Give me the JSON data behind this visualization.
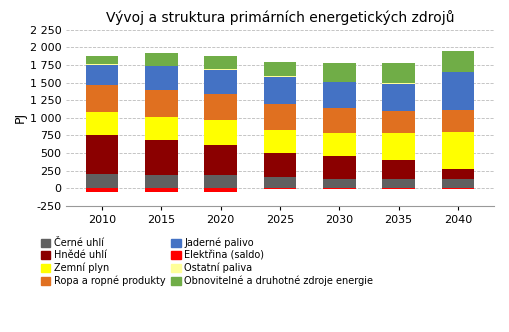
{
  "title": "Vývoj a struktura primárních energetických zdrojů",
  "ylabel": "PJ",
  "years": [
    2010,
    2015,
    2020,
    2025,
    2030,
    2035,
    2040
  ],
  "series": {
    "Černé uhlí": {
      "values": [
        200,
        190,
        185,
        155,
        130,
        130,
        130
      ],
      "color": "#606060"
    },
    "Hnědé uhlí": {
      "values": [
        555,
        490,
        430,
        340,
        325,
        265,
        145
      ],
      "color": "#8B0000"
    },
    "Zemní plyn": {
      "values": [
        335,
        330,
        355,
        330,
        330,
        390,
        530
      ],
      "color": "#FFFF00"
    },
    "Ropa a ropné produkty": {
      "values": [
        375,
        385,
        370,
        370,
        360,
        310,
        310
      ],
      "color": "#E07020"
    },
    "Jaderné palivo": {
      "values": [
        290,
        335,
        340,
        385,
        360,
        390,
        530
      ],
      "color": "#4472C4"
    },
    "Ostatní paliva": {
      "values": [
        8,
        10,
        8,
        8,
        8,
        8,
        8
      ],
      "color": "#FFFF99"
    },
    "Obnovitelné a druhotné zdroje energie": {
      "values": [
        120,
        175,
        185,
        205,
        270,
        285,
        295
      ],
      "color": "#70AD47"
    },
    "Elektřina (saldo)": {
      "values": [
        -50,
        -60,
        -55,
        -5,
        -5,
        -5,
        -5
      ],
      "color": "#FF0000"
    }
  },
  "ylim": [
    -250,
    2250
  ],
  "yticks": [
    -250,
    0,
    250,
    500,
    750,
    1000,
    1250,
    1500,
    1750,
    2000,
    2250
  ],
  "ytick_labels": [
    "-250",
    "0",
    "250",
    "500",
    "750",
    "1 000",
    "1 250",
    "1 500",
    "1 750",
    "2 000",
    "2 250"
  ],
  "legend_left": [
    "Černé uhlí",
    "Zemní plyn",
    "Jaderné palivo",
    "Ostatní paliva"
  ],
  "legend_right": [
    "Hnědé uhlí",
    "Ropa a ropné produkty",
    "Elektřina (saldo)",
    "Obnovitelné a druhotné zdroje energie"
  ],
  "plot_order_pos": [
    "Černé uhlí",
    "Hnědé uhlí",
    "Zemní plyn",
    "Ropa a ropné produkty",
    "Jaderné palivo",
    "Ostatní paliva",
    "Obnovitelné a druhotné zdroje energie"
  ],
  "plot_order_neg": [
    "Elektřina (saldo)"
  ],
  "background_color": "#FFFFFF",
  "grid_color": "#BBBBBB"
}
